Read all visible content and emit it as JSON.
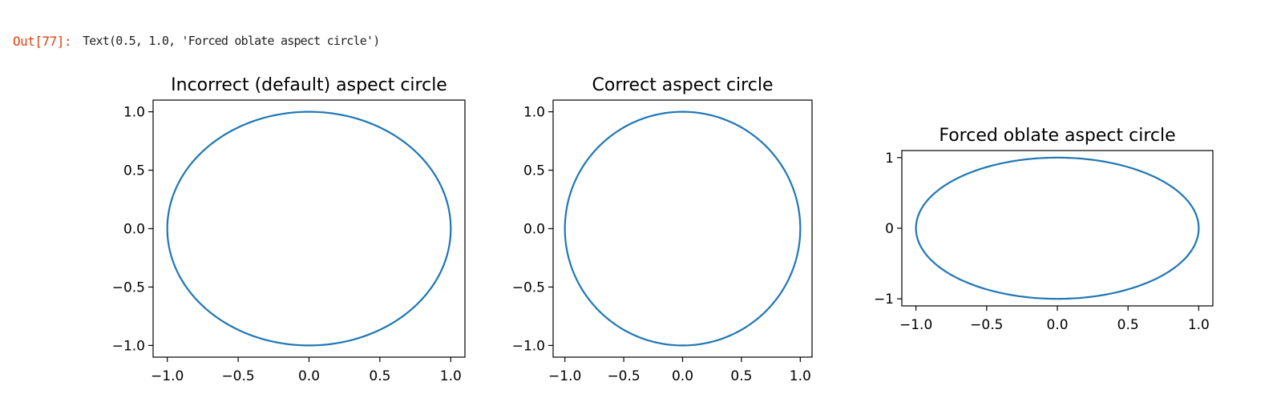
{
  "output": {
    "prompt": "Out[77]:",
    "text": "Text(0.5, 1.0, 'Forced oblate aspect circle')"
  },
  "style": {
    "line_color": "#1f77b4",
    "axis_color": "#000000"
  },
  "chart_data": [
    {
      "type": "line",
      "title": "Incorrect (default) aspect circle",
      "xlabel": "",
      "ylabel": "",
      "xlim": [
        -1.1,
        1.1
      ],
      "ylim": [
        -1.1,
        1.1
      ],
      "xticks": [
        -1.0,
        -0.5,
        0.0,
        0.5,
        1.0
      ],
      "xtick_labels": [
        "−1.0",
        "−0.5",
        "0.0",
        "0.5",
        "1.0"
      ],
      "yticks": [
        -1.0,
        -0.5,
        0.0,
        0.5,
        1.0
      ],
      "ytick_labels": [
        "−1.0",
        "−0.5",
        "0.0",
        "0.5",
        "1.0"
      ],
      "grid": false,
      "series": [
        {
          "function": "unit circle",
          "x": "cos(t)",
          "y": "sin(t)",
          "t_range": [
            0,
            6.2832
          ]
        }
      ]
    },
    {
      "type": "line",
      "title": "Correct aspect circle",
      "xlabel": "",
      "ylabel": "",
      "xlim": [
        -1.1,
        1.1
      ],
      "ylim": [
        -1.1,
        1.1
      ],
      "xticks": [
        -1.0,
        -0.5,
        0.0,
        0.5,
        1.0
      ],
      "xtick_labels": [
        "−1.0",
        "−0.5",
        "0.0",
        "0.5",
        "1.0"
      ],
      "yticks": [
        -1.0,
        -0.5,
        0.0,
        0.5,
        1.0
      ],
      "ytick_labels": [
        "−1.0",
        "−0.5",
        "0.0",
        "0.5",
        "1.0"
      ],
      "grid": false,
      "series": [
        {
          "function": "unit circle",
          "x": "cos(t)",
          "y": "sin(t)",
          "t_range": [
            0,
            6.2832
          ]
        }
      ]
    },
    {
      "type": "line",
      "title": "Forced oblate aspect circle",
      "xlabel": "",
      "ylabel": "",
      "xlim": [
        -1.1,
        1.1
      ],
      "ylim": [
        -1.1,
        1.1
      ],
      "xticks": [
        -1.0,
        -0.5,
        0.0,
        0.5,
        1.0
      ],
      "xtick_labels": [
        "−1.0",
        "−0.5",
        "0.0",
        "0.5",
        "1.0"
      ],
      "yticks": [
        -1,
        0,
        1
      ],
      "ytick_labels": [
        "−1",
        "0",
        "1"
      ],
      "grid": false,
      "series": [
        {
          "function": "unit circle",
          "x": "cos(t)",
          "y": "sin(t)",
          "t_range": [
            0,
            6.2832
          ]
        }
      ]
    }
  ]
}
